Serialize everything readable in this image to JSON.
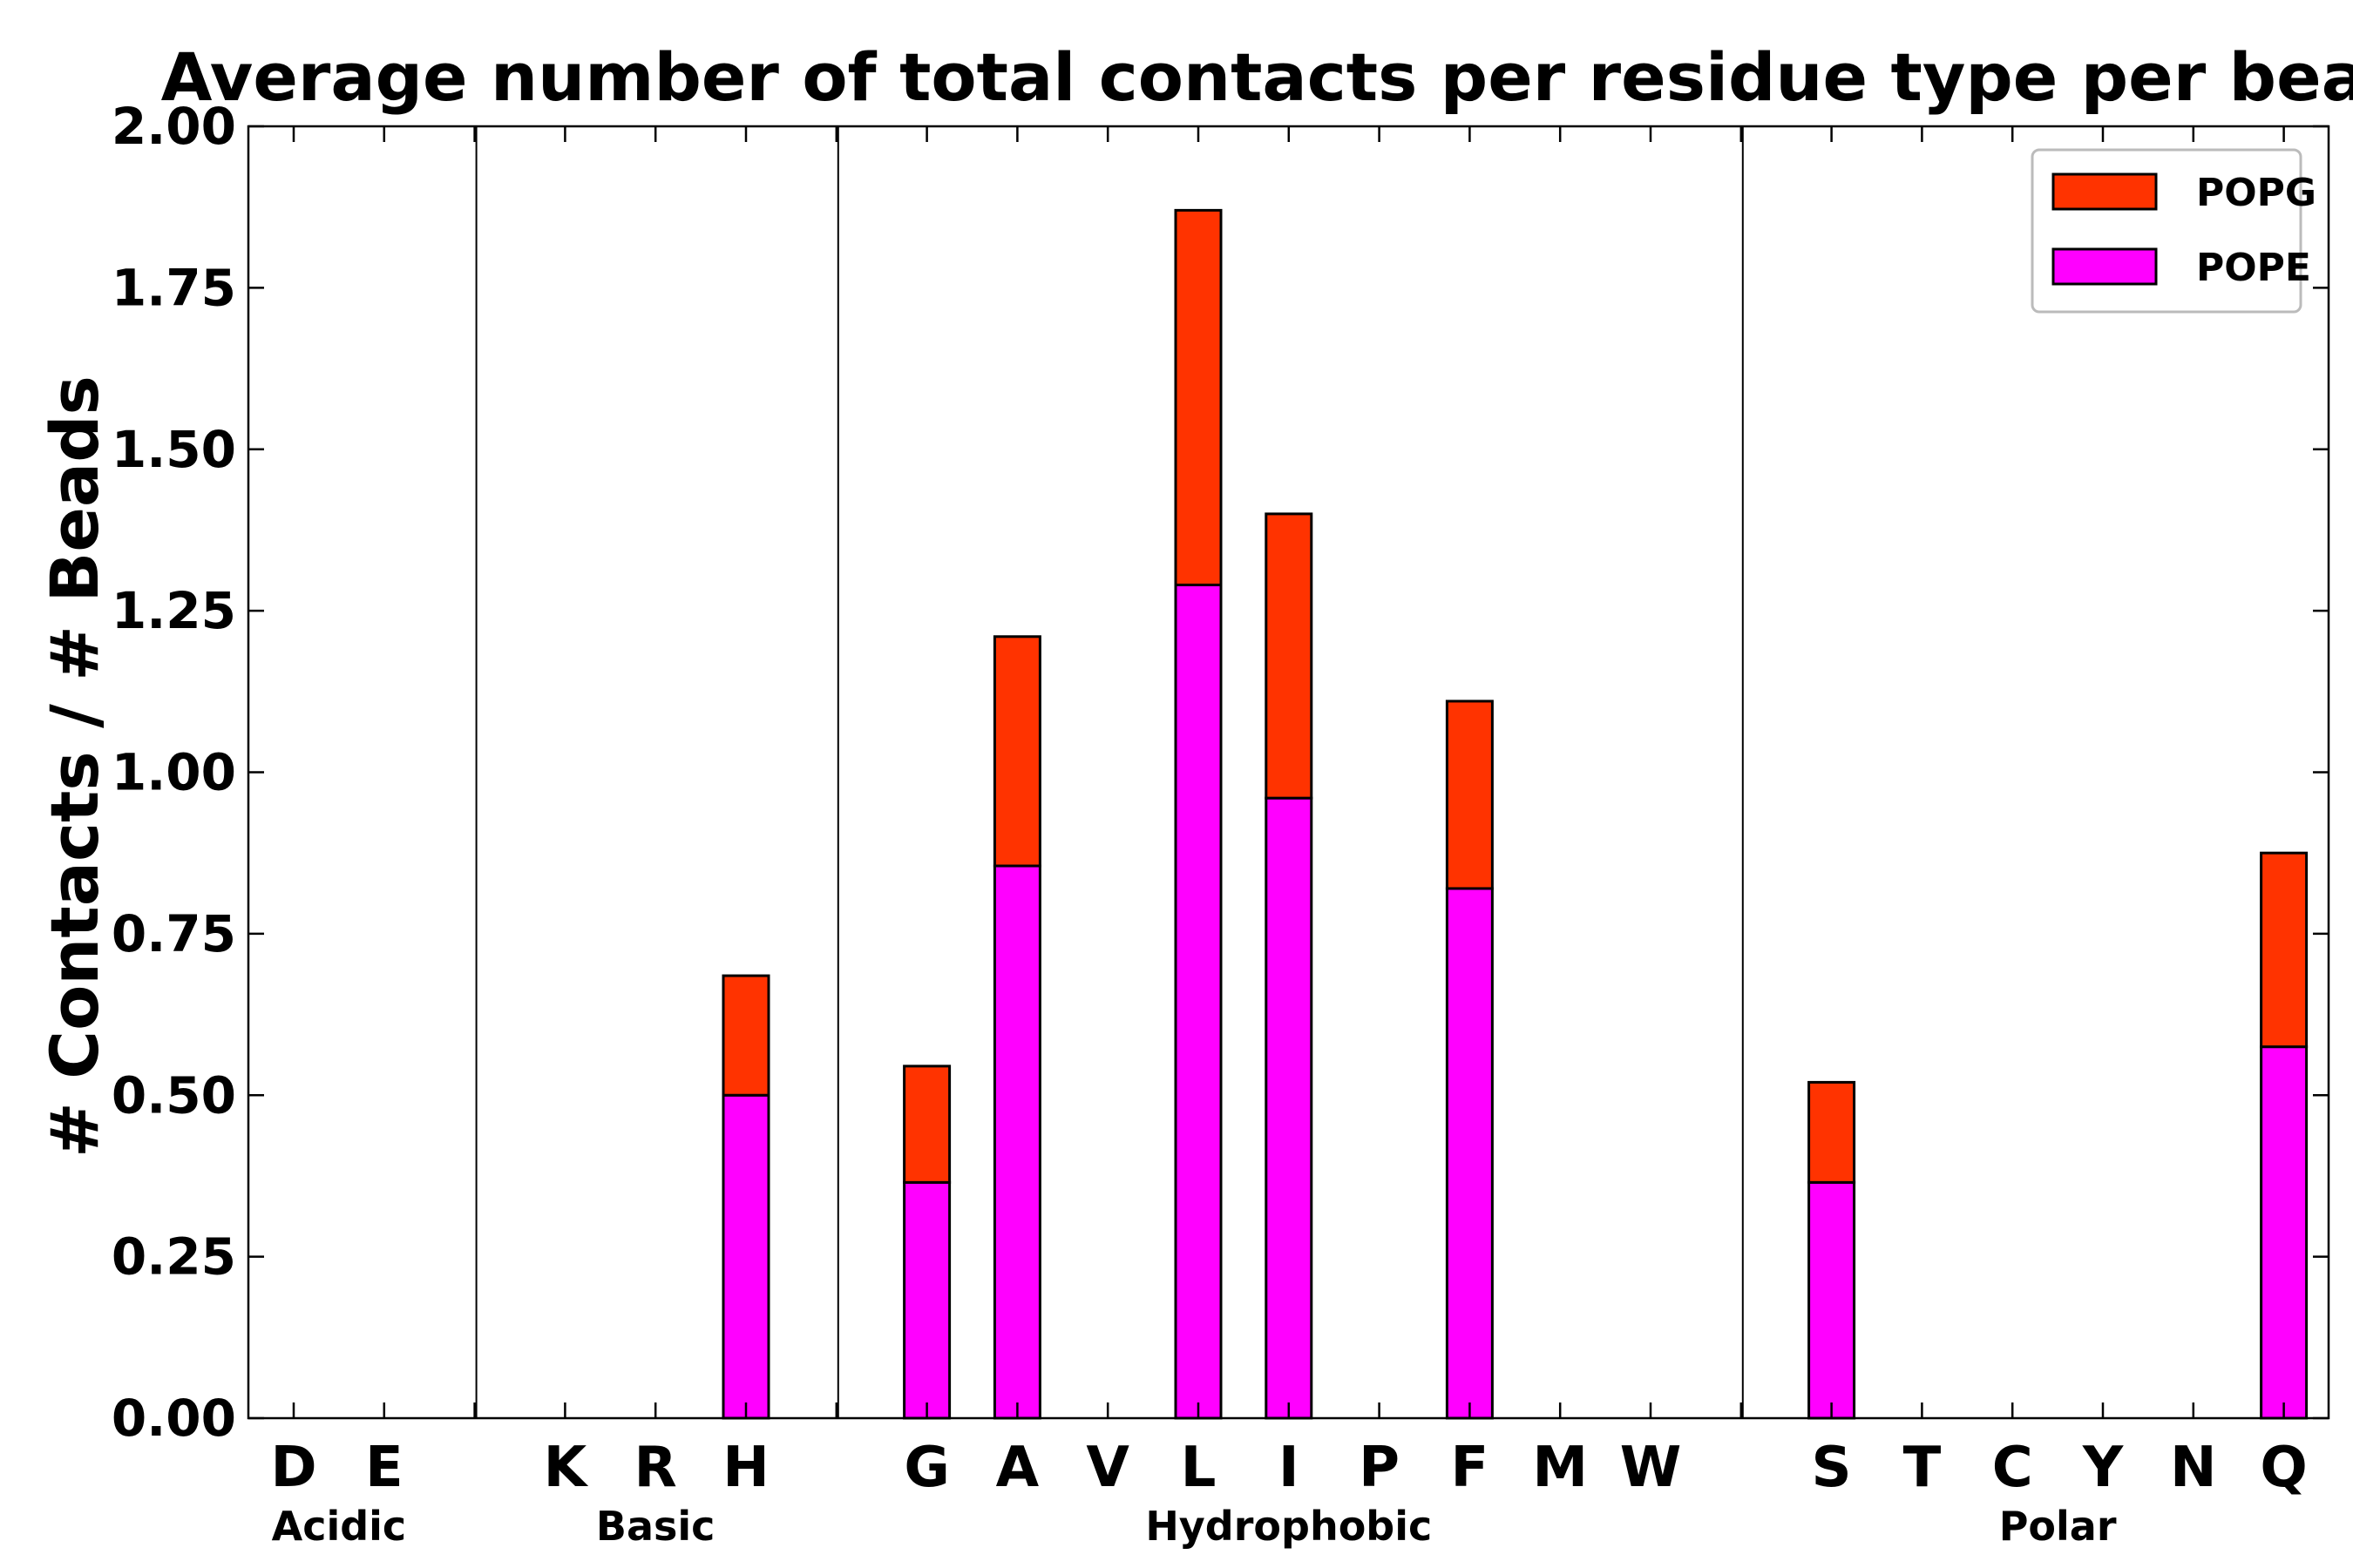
{
  "chart_data": {
    "type": "bar",
    "stacked": true,
    "title": "Average number of total contacts per residue type per bead",
    "xlabel": "",
    "ylabel": "# Contacts / # Beads",
    "ylim": [
      0,
      2.0
    ],
    "yticks": [
      "0.00",
      "0.25",
      "0.50",
      "0.75",
      "1.00",
      "1.25",
      "1.50",
      "1.75",
      "2.00"
    ],
    "categories": [
      "D",
      "E",
      "",
      "K",
      "R",
      "H",
      "",
      "G",
      "A",
      "V",
      "L",
      "I",
      "P",
      "F",
      "M",
      "W",
      "",
      "S",
      "T",
      "C",
      "Y",
      "N",
      "Q"
    ],
    "series": [
      {
        "name": "POPE",
        "color": "#ff00ff",
        "values": [
          0,
          0,
          0,
          0,
          0,
          0.5,
          0,
          0.365,
          0.855,
          0,
          1.29,
          0.96,
          0,
          0.82,
          0,
          0,
          0,
          0.365,
          0,
          0,
          0,
          0,
          0.575
        ]
      },
      {
        "name": "POPG",
        "color": "#ff3300",
        "values": [
          0,
          0,
          0,
          0,
          0,
          0.185,
          0,
          0.18,
          0.355,
          0,
          0.58,
          0.44,
          0,
          0.29,
          0,
          0,
          0,
          0.155,
          0,
          0,
          0,
          0,
          0.3
        ]
      }
    ],
    "groups": [
      {
        "label": "Acidic",
        "start": 0,
        "end": 1
      },
      {
        "label": "Basic",
        "start": 3,
        "end": 5
      },
      {
        "label": "Hydrophobic",
        "start": 7,
        "end": 15
      },
      {
        "label": "Polar",
        "start": 17,
        "end": 22
      }
    ],
    "group_separators_after": [
      2,
      6,
      16
    ],
    "legend": {
      "position": "top-right",
      "entries": [
        "POPG",
        "POPE"
      ]
    },
    "grid": false
  }
}
